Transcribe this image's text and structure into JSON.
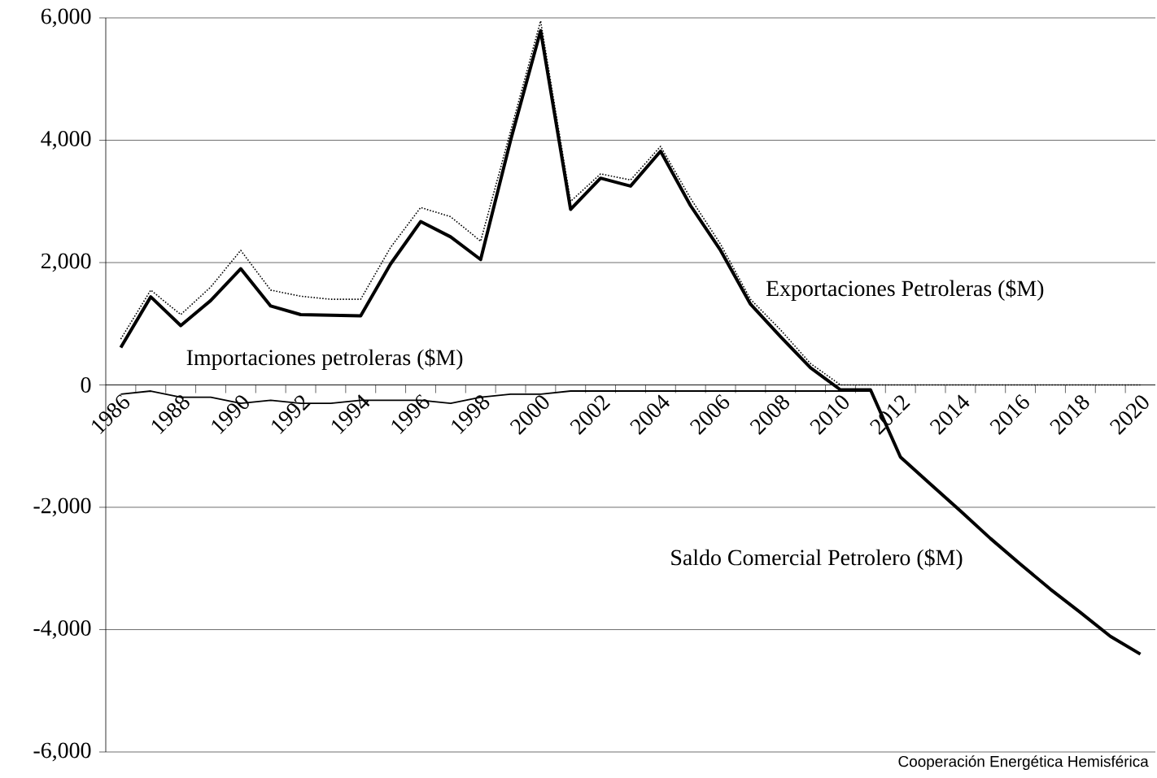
{
  "chart_data": {
    "type": "line",
    "categories": [
      "1986",
      null,
      "1988",
      null,
      "1990",
      null,
      "1992",
      null,
      "1994",
      null,
      "1996",
      null,
      "1998",
      null,
      "2000",
      null,
      "2002",
      null,
      "2004",
      null,
      "2006",
      null,
      "2008",
      null,
      "2010",
      null,
      "2012",
      null,
      "2014",
      null,
      "2016",
      null,
      "2018",
      null,
      "2020"
    ],
    "series": [
      {
        "name": "Exportaciones Petroleras ($M)",
        "color": "#000000",
        "line_style": "dotted",
        "values": [
          750,
          1550,
          1150,
          1600,
          2200,
          1550,
          1450,
          1400,
          1400,
          2250,
          2900,
          2750,
          2350,
          4150,
          5950,
          3000,
          3450,
          3350,
          3900,
          3050,
          2300,
          1400,
          900,
          350,
          0,
          0,
          0,
          0,
          0,
          0,
          0,
          0,
          0,
          0,
          0
        ]
      },
      {
        "name": "Importaciones petroleras ($M)",
        "color": "#000000",
        "line_style": "solid",
        "values": [
          -150,
          -100,
          -200,
          -200,
          -300,
          -250,
          -300,
          -300,
          -250,
          -250,
          -250,
          -300,
          -200,
          -150,
          -150,
          -100,
          -100,
          -100,
          -100,
          -100,
          -100,
          -100,
          -100,
          -100,
          -100,
          -100,
          null,
          null,
          null,
          null,
          null,
          null,
          null,
          null,
          null
        ]
      },
      {
        "name": "Saldo Comercial Petrolero ($M)",
        "color": "#000000",
        "line_style": "solid",
        "values": [
          610,
          1440,
          970,
          1380,
          1900,
          1290,
          1150,
          1140,
          1130,
          1980,
          2670,
          2420,
          2050,
          4000,
          5790,
          2870,
          3380,
          3250,
          3820,
          2930,
          2200,
          1320,
          790,
          280,
          -80,
          -80,
          -1180,
          -1620,
          -2060,
          -2510,
          -2930,
          -3340,
          -3720,
          -4110,
          -4400
        ]
      }
    ],
    "ylim": [
      -6000,
      6000
    ],
    "yticks": [
      {
        "value": -6000,
        "label": "-6,000"
      },
      {
        "value": -4000,
        "label": "-4,000"
      },
      {
        "value": -2000,
        "label": "-2,000"
      },
      {
        "value": 0,
        "label": "0"
      },
      {
        "value": 2000,
        "label": "2,000"
      },
      {
        "value": 4000,
        "label": "4,000"
      },
      {
        "value": 6000,
        "label": "6,000"
      }
    ],
    "grid": "y",
    "marker": "none",
    "annotations": [
      "Cooperación Energética Hemisférica"
    ]
  }
}
